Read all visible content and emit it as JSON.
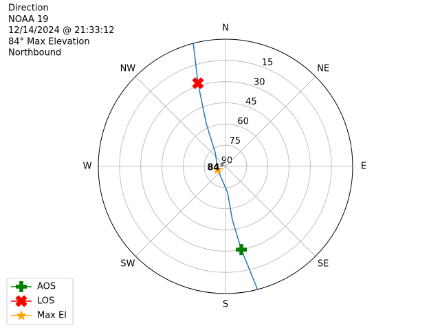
{
  "chart_data": {
    "type": "polar",
    "title_lines": [
      "Direction",
      "NOAA 19",
      "12/14/2024 @ 21:33:12",
      "84° Max Elevation",
      "Northbound"
    ],
    "direction_ticks": [
      {
        "value": 0,
        "label": "N"
      },
      {
        "value": 45,
        "label": "NE"
      },
      {
        "value": 90,
        "label": "E"
      },
      {
        "value": 135,
        "label": "SE"
      },
      {
        "value": 180,
        "label": "S"
      },
      {
        "value": 225,
        "label": "SW"
      },
      {
        "value": 270,
        "label": "W"
      },
      {
        "value": 315,
        "label": "NW"
      }
    ],
    "rlim": [
      90,
      0
    ],
    "rticks": [
      15,
      30,
      45,
      60,
      75,
      90
    ],
    "grid": true,
    "track": {
      "color": "#1f77b4",
      "azimuth": [
        345.3,
        341.7,
        335.7,
        323,
        247,
        175.5,
        172.7,
        169.2,
        165.4
      ],
      "elevation": [
        0,
        28,
        57,
        78,
        84,
        71.5,
        51.8,
        30,
        0
      ]
    },
    "series": [
      {
        "name": "AOS",
        "color": "green",
        "marker": "plus",
        "azimuth": 169.2,
        "elevation": 30
      },
      {
        "name": "LOS",
        "color": "red",
        "marker": "x",
        "azimuth": 341.7,
        "elevation": 28
      },
      {
        "name": "Max El",
        "color": "orange",
        "marker": "star",
        "azimuth": 247,
        "elevation": 84,
        "label": "84°"
      }
    ],
    "legend": "lower left"
  }
}
